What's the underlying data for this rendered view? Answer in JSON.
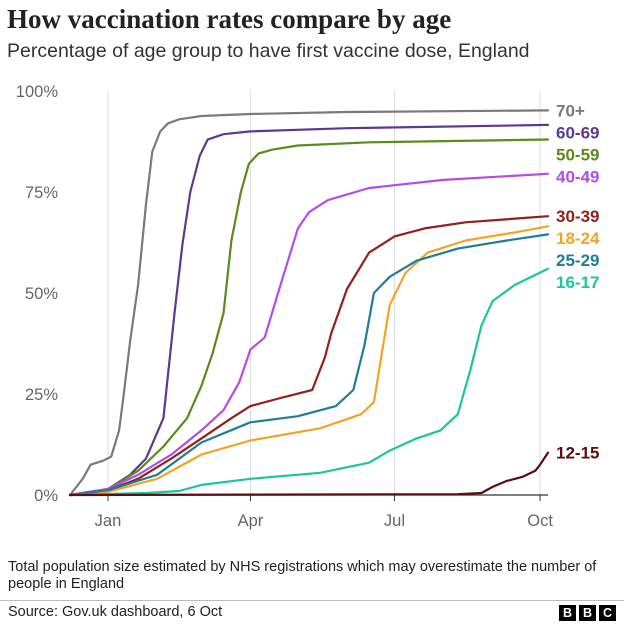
{
  "header": {
    "title": "How vaccination rates compare by age",
    "subtitle": "Percentage of age group to have first vaccine dose, England"
  },
  "footer": {
    "note": "Total population size estimated by NHS registrations which may overestimate the number of people in England",
    "source": "Source: Gov.uk dashboard, 6 Oct",
    "logo_letters": [
      "B",
      "B",
      "C"
    ]
  },
  "chart_data": {
    "type": "line",
    "title": "How vaccination rates compare by age",
    "subtitle": "Percentage of age group to have first vaccine dose, England",
    "xlabel": "",
    "ylabel": "",
    "x_range": [
      "2020-12-08",
      "2021-10-06"
    ],
    "xticks": [
      {
        "label": "Jan",
        "date": "2021-01-01"
      },
      {
        "label": "Apr",
        "date": "2021-04-01"
      },
      {
        "label": "Jul",
        "date": "2021-07-01"
      },
      {
        "label": "Oct",
        "date": "2021-10-01"
      }
    ],
    "ylim": [
      0,
      100
    ],
    "yticks": [
      {
        "label": "0%",
        "value": 0
      },
      {
        "label": "25%",
        "value": 25
      },
      {
        "label": "50%",
        "value": 50
      },
      {
        "label": "75%",
        "value": 75
      },
      {
        "label": "100%",
        "value": 100
      }
    ],
    "grid": "vertical",
    "legend": "direct labels at line ends, right",
    "series": [
      {
        "name": "70+",
        "color": "#7a7a7a",
        "points": [
          [
            "2020-12-08",
            0
          ],
          [
            "2020-12-16",
            4
          ],
          [
            "2020-12-21",
            7.5
          ],
          [
            "2020-12-29",
            8.5
          ],
          [
            "2021-01-03",
            9.5
          ],
          [
            "2021-01-08",
            16
          ],
          [
            "2021-01-11",
            25
          ],
          [
            "2021-01-15",
            38
          ],
          [
            "2021-01-20",
            52
          ],
          [
            "2021-01-25",
            72
          ],
          [
            "2021-01-29",
            85
          ],
          [
            "2021-02-03",
            90
          ],
          [
            "2021-02-08",
            92
          ],
          [
            "2021-02-15",
            93
          ],
          [
            "2021-03-01",
            93.8
          ],
          [
            "2021-04-01",
            94.3
          ],
          [
            "2021-06-01",
            94.8
          ],
          [
            "2021-10-06",
            95.2
          ]
        ]
      },
      {
        "name": "60-69",
        "color": "#5b3894",
        "points": [
          [
            "2020-12-08",
            0
          ],
          [
            "2021-01-01",
            1.5
          ],
          [
            "2021-01-15",
            5
          ],
          [
            "2021-01-25",
            9
          ],
          [
            "2021-02-05",
            19
          ],
          [
            "2021-02-12",
            45
          ],
          [
            "2021-02-17",
            62
          ],
          [
            "2021-02-22",
            75
          ],
          [
            "2021-02-28",
            84
          ],
          [
            "2021-03-05",
            88
          ],
          [
            "2021-03-15",
            89.3
          ],
          [
            "2021-04-01",
            90
          ],
          [
            "2021-06-01",
            90.8
          ],
          [
            "2021-10-06",
            91.6
          ]
        ]
      },
      {
        "name": "50-59",
        "color": "#5b8a1d",
        "points": [
          [
            "2020-12-08",
            0
          ],
          [
            "2021-01-01",
            1.5
          ],
          [
            "2021-01-20",
            6
          ],
          [
            "2021-02-05",
            12
          ],
          [
            "2021-02-20",
            19
          ],
          [
            "2021-03-01",
            27
          ],
          [
            "2021-03-08",
            35
          ],
          [
            "2021-03-15",
            45
          ],
          [
            "2021-03-20",
            63
          ],
          [
            "2021-03-26",
            75
          ],
          [
            "2021-03-31",
            82
          ],
          [
            "2021-04-06",
            84.5
          ],
          [
            "2021-04-15",
            85.5
          ],
          [
            "2021-05-01",
            86.5
          ],
          [
            "2021-06-15",
            87.3
          ],
          [
            "2021-10-06",
            88
          ]
        ]
      },
      {
        "name": "40-49",
        "color": "#b04ee6",
        "points": [
          [
            "2020-12-08",
            0
          ],
          [
            "2021-01-01",
            1.5
          ],
          [
            "2021-01-20",
            5
          ],
          [
            "2021-02-10",
            10
          ],
          [
            "2021-03-01",
            16
          ],
          [
            "2021-03-15",
            21
          ],
          [
            "2021-03-25",
            28
          ],
          [
            "2021-04-01",
            36
          ],
          [
            "2021-04-10",
            39
          ],
          [
            "2021-04-20",
            52
          ],
          [
            "2021-05-01",
            66
          ],
          [
            "2021-05-08",
            70
          ],
          [
            "2021-05-20",
            73
          ],
          [
            "2021-06-15",
            76
          ],
          [
            "2021-08-01",
            78
          ],
          [
            "2021-10-06",
            79.5
          ]
        ]
      },
      {
        "name": "30-39",
        "color": "#931f1b",
        "points": [
          [
            "2020-12-08",
            0
          ],
          [
            "2021-01-01",
            1.2
          ],
          [
            "2021-01-20",
            4
          ],
          [
            "2021-02-10",
            9
          ],
          [
            "2021-03-01",
            14
          ],
          [
            "2021-03-20",
            19
          ],
          [
            "2021-04-01",
            22
          ],
          [
            "2021-04-20",
            24
          ],
          [
            "2021-05-10",
            26
          ],
          [
            "2021-05-18",
            34
          ],
          [
            "2021-05-22",
            40
          ],
          [
            "2021-06-01",
            51
          ],
          [
            "2021-06-15",
            60
          ],
          [
            "2021-07-01",
            64
          ],
          [
            "2021-07-20",
            66
          ],
          [
            "2021-08-15",
            67.5
          ],
          [
            "2021-10-06",
            69
          ]
        ]
      },
      {
        "name": "18-24",
        "color": "#f0a429",
        "points": [
          [
            "2020-12-08",
            0
          ],
          [
            "2021-01-01",
            0.8
          ],
          [
            "2021-02-01",
            4
          ],
          [
            "2021-03-01",
            10
          ],
          [
            "2021-04-01",
            13.5
          ],
          [
            "2021-05-15",
            16.5
          ],
          [
            "2021-06-10",
            20
          ],
          [
            "2021-06-18",
            23
          ],
          [
            "2021-06-23",
            35
          ],
          [
            "2021-06-28",
            47
          ],
          [
            "2021-07-08",
            55
          ],
          [
            "2021-07-22",
            60
          ],
          [
            "2021-08-15",
            63
          ],
          [
            "2021-09-15",
            65
          ],
          [
            "2021-10-06",
            66.5
          ]
        ]
      },
      {
        "name": "25-29",
        "color": "#217c9a",
        "points": [
          [
            "2020-12-08",
            0
          ],
          [
            "2021-01-01",
            1.2
          ],
          [
            "2021-02-01",
            5
          ],
          [
            "2021-03-01",
            13
          ],
          [
            "2021-04-01",
            18
          ],
          [
            "2021-05-01",
            19.5
          ],
          [
            "2021-05-25",
            22
          ],
          [
            "2021-06-05",
            26
          ],
          [
            "2021-06-12",
            37
          ],
          [
            "2021-06-18",
            50
          ],
          [
            "2021-06-28",
            54
          ],
          [
            "2021-07-15",
            58
          ],
          [
            "2021-08-10",
            61
          ],
          [
            "2021-09-10",
            63
          ],
          [
            "2021-10-06",
            64.5
          ]
        ]
      },
      {
        "name": "16-17",
        "color": "#1dc69a",
        "points": [
          [
            "2020-12-08",
            0
          ],
          [
            "2021-01-25",
            0.5
          ],
          [
            "2021-02-15",
            1
          ],
          [
            "2021-03-01",
            2.5
          ],
          [
            "2021-04-01",
            4
          ],
          [
            "2021-05-15",
            5.5
          ],
          [
            "2021-06-15",
            8
          ],
          [
            "2021-06-28",
            11
          ],
          [
            "2021-07-15",
            14
          ],
          [
            "2021-07-30",
            16
          ],
          [
            "2021-08-10",
            20
          ],
          [
            "2021-08-18",
            31
          ],
          [
            "2021-08-25",
            42
          ],
          [
            "2021-09-01",
            48
          ],
          [
            "2021-09-15",
            52
          ],
          [
            "2021-10-06",
            56
          ]
        ]
      },
      {
        "name": "12-15",
        "color": "#5c0d0d",
        "points": [
          [
            "2020-12-08",
            0
          ],
          [
            "2021-08-10",
            0.2
          ],
          [
            "2021-08-25",
            0.5
          ],
          [
            "2021-09-01",
            2
          ],
          [
            "2021-09-10",
            3.5
          ],
          [
            "2021-09-20",
            4.5
          ],
          [
            "2021-09-28",
            6
          ],
          [
            "2021-10-01",
            7.5
          ],
          [
            "2021-10-06",
            10.5
          ]
        ]
      }
    ]
  }
}
